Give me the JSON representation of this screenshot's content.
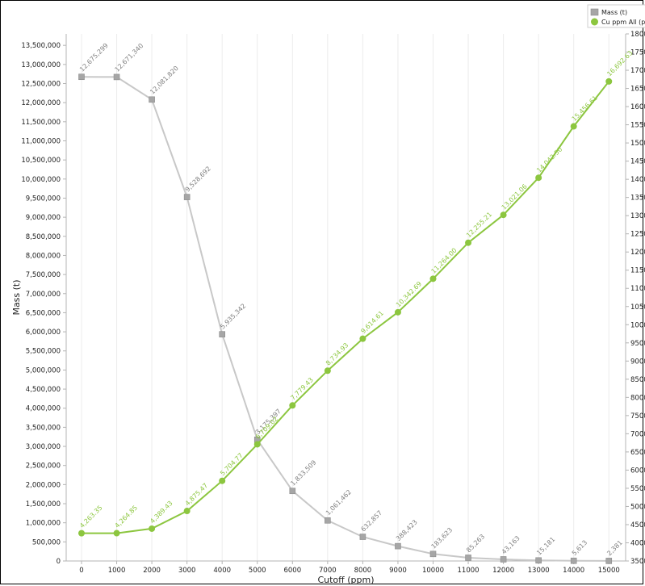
{
  "chart_data": {
    "type": "line",
    "xlabel": "Cutoff (ppm)",
    "ylabel": "Mass (t)",
    "x": [
      0,
      1000,
      2000,
      3000,
      4000,
      5000,
      6000,
      7000,
      8000,
      9000,
      10000,
      11000,
      12000,
      13000,
      14000,
      15000
    ],
    "x_ticks": [
      "0",
      "1000",
      "2000",
      "3000",
      "4000",
      "5000",
      "6000",
      "7000",
      "8000",
      "9000",
      "10000",
      "11000",
      "12000",
      "13000",
      "14000",
      "15000"
    ],
    "y_left_ticks": [
      "0",
      "500,000",
      "1,000,000",
      "1,500,000",
      "2,000,000",
      "2,500,000",
      "3,000,000",
      "3,500,000",
      "4,000,000",
      "4,500,000",
      "5,000,000",
      "5,500,000",
      "6,000,000",
      "6,500,000",
      "7,000,000",
      "7,500,000",
      "8,000,000",
      "8,500,000",
      "9,000,000",
      "9,500,000",
      "10,000,000",
      "10,500,000",
      "11,000,000",
      "11,500,000",
      "12,000,000",
      "12,500,000",
      "13,000,000",
      "13,500,000"
    ],
    "y_right_ticks": [
      "3500",
      "4000",
      "4500",
      "5000",
      "5500",
      "6000",
      "6500",
      "7000",
      "7500",
      "8000",
      "8500",
      "9000",
      "9500",
      "10000",
      "10500",
      "11000",
      "11500",
      "12000",
      "12500",
      "13000",
      "13500",
      "14000",
      "14500",
      "15000",
      "15500",
      "16000",
      "16500",
      "17000",
      "17500",
      "18000"
    ],
    "ylim_left": [
      0,
      13800000
    ],
    "ylim_right": [
      3500,
      18000
    ],
    "legend_position": "top-right",
    "series": [
      {
        "name": "Mass (t)",
        "axis": "left",
        "color": "#c8c8c8",
        "marker_color": "#a6a6a6",
        "marker": "square",
        "values": [
          12675299,
          12671340,
          12081820,
          9528692,
          5935342,
          3175397,
          1833509,
          1061462,
          632857,
          388423,
          183623,
          85263,
          43163,
          15181,
          5613,
          2381
        ],
        "labels": [
          "12,675,299",
          "12,671,340",
          "12,081,820",
          "9,528,692",
          "5,935,342",
          "3,175,397",
          "1,833,509",
          "1,061,462",
          "632,857",
          "388,423",
          "183,623",
          "85,263",
          "43,163",
          "15,181",
          "5,613",
          "2,381"
        ]
      },
      {
        "name": "Cu ppm All (p",
        "axis": "right",
        "color": "#8cc63f",
        "marker_color": "#8cc63f",
        "marker": "circle",
        "values": [
          4263.35,
          4264.85,
          4389.43,
          4875.47,
          5704.77,
          6709.02,
          7779.43,
          8734.93,
          9614.61,
          10342.69,
          11264.0,
          12255.21,
          13021.06,
          14042.5,
          15456.61,
          16692.63
        ],
        "labels": [
          "4,263.35",
          "4,264.85",
          "4,389.43",
          "4,875.47",
          "5,704.77",
          "6,709.02",
          "7,779.43",
          "8,734.93",
          "9,614.61",
          "10,342.69",
          "11,264.00",
          "12,255.21",
          "13,021.06",
          "14,042.50",
          "15,456.61",
          "16,692.63"
        ]
      }
    ]
  }
}
